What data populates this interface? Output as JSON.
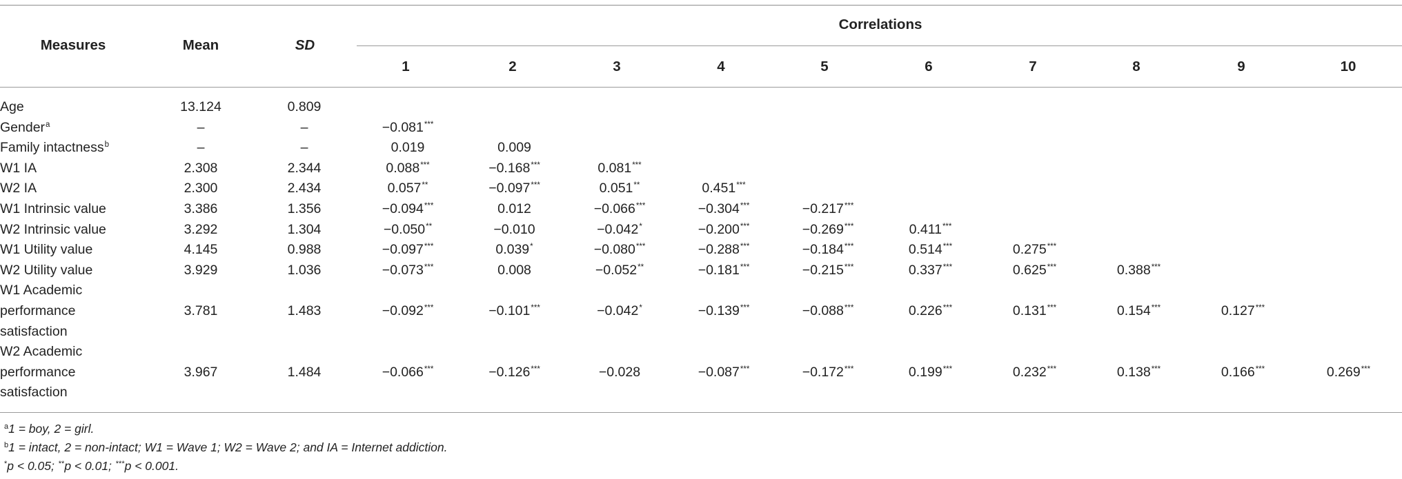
{
  "header": {
    "measures": "Measures",
    "mean": "Mean",
    "sd": "SD",
    "correlations": "Correlations",
    "cols": [
      "1",
      "2",
      "3",
      "4",
      "5",
      "6",
      "7",
      "8",
      "9",
      "10"
    ]
  },
  "rows": [
    {
      "label_lines": [
        "Age"
      ],
      "sup": "",
      "mean": "13.124",
      "sd": "0.809",
      "corr": []
    },
    {
      "label_lines": [
        "Gender"
      ],
      "sup": "a",
      "mean": "–",
      "sd": "–",
      "corr": [
        {
          "v": "−0.081",
          "s": "***"
        }
      ]
    },
    {
      "label_lines": [
        "Family intactness"
      ],
      "sup": "b",
      "mean": "–",
      "sd": "–",
      "corr": [
        {
          "v": "0.019",
          "s": ""
        },
        {
          "v": "0.009",
          "s": ""
        }
      ]
    },
    {
      "label_lines": [
        "W1 IA"
      ],
      "sup": "",
      "mean": "2.308",
      "sd": "2.344",
      "corr": [
        {
          "v": "0.088",
          "s": "***"
        },
        {
          "v": "−0.168",
          "s": "***"
        },
        {
          "v": "0.081",
          "s": "***"
        }
      ]
    },
    {
      "label_lines": [
        "W2 IA"
      ],
      "sup": "",
      "mean": "2.300",
      "sd": "2.434",
      "corr": [
        {
          "v": "0.057",
          "s": "**"
        },
        {
          "v": "−0.097",
          "s": "***"
        },
        {
          "v": "0.051",
          "s": "**"
        },
        {
          "v": "0.451",
          "s": "***"
        }
      ]
    },
    {
      "label_lines": [
        "W1 Intrinsic value"
      ],
      "sup": "",
      "mean": "3.386",
      "sd": "1.356",
      "corr": [
        {
          "v": "−0.094",
          "s": "***"
        },
        {
          "v": "0.012",
          "s": ""
        },
        {
          "v": "−0.066",
          "s": "***"
        },
        {
          "v": "−0.304",
          "s": "***"
        },
        {
          "v": "−0.217",
          "s": "***"
        }
      ]
    },
    {
      "label_lines": [
        "W2 Intrinsic value"
      ],
      "sup": "",
      "mean": "3.292",
      "sd": "1.304",
      "corr": [
        {
          "v": "−0.050",
          "s": "**"
        },
        {
          "v": "−0.010",
          "s": ""
        },
        {
          "v": "−0.042",
          "s": "*"
        },
        {
          "v": "−0.200",
          "s": "***"
        },
        {
          "v": "−0.269",
          "s": "***"
        },
        {
          "v": "0.411",
          "s": "***"
        }
      ]
    },
    {
      "label_lines": [
        "W1 Utility value"
      ],
      "sup": "",
      "mean": "4.145",
      "sd": "0.988",
      "corr": [
        {
          "v": "−0.097",
          "s": "***"
        },
        {
          "v": "0.039",
          "s": "*"
        },
        {
          "v": "−0.080",
          "s": "***"
        },
        {
          "v": "−0.288",
          "s": "***"
        },
        {
          "v": "−0.184",
          "s": "***"
        },
        {
          "v": "0.514",
          "s": "***"
        },
        {
          "v": "0.275",
          "s": "***"
        }
      ]
    },
    {
      "label_lines": [
        "W2 Utility value"
      ],
      "sup": "",
      "mean": "3.929",
      "sd": "1.036",
      "corr": [
        {
          "v": "−0.073",
          "s": "***"
        },
        {
          "v": "0.008",
          "s": ""
        },
        {
          "v": "−0.052",
          "s": "**"
        },
        {
          "v": "−0.181",
          "s": "***"
        },
        {
          "v": "−0.215",
          "s": "***"
        },
        {
          "v": "0.337",
          "s": "***"
        },
        {
          "v": "0.625",
          "s": "***"
        },
        {
          "v": "0.388",
          "s": "***"
        }
      ]
    },
    {
      "label_lines": [
        "W1 Academic",
        "performance",
        "satisfaction"
      ],
      "sup": "",
      "mean": "3.781",
      "sd": "1.483",
      "corr": [
        {
          "v": "−0.092",
          "s": "***"
        },
        {
          "v": "−0.101",
          "s": "***"
        },
        {
          "v": "−0.042",
          "s": "*"
        },
        {
          "v": "−0.139",
          "s": "***"
        },
        {
          "v": "−0.088",
          "s": "***"
        },
        {
          "v": "0.226",
          "s": "***"
        },
        {
          "v": "0.131",
          "s": "***"
        },
        {
          "v": "0.154",
          "s": "***"
        },
        {
          "v": "0.127",
          "s": "***"
        }
      ]
    },
    {
      "label_lines": [
        "W2 Academic",
        "performance",
        "satisfaction"
      ],
      "sup": "",
      "mean": "3.967",
      "sd": "1.484",
      "corr": [
        {
          "v": "−0.066",
          "s": "***"
        },
        {
          "v": "−0.126",
          "s": "***"
        },
        {
          "v": "−0.028",
          "s": ""
        },
        {
          "v": "−0.087",
          "s": "***"
        },
        {
          "v": "−0.172",
          "s": "***"
        },
        {
          "v": "0.199",
          "s": "***"
        },
        {
          "v": "0.232",
          "s": "***"
        },
        {
          "v": "0.138",
          "s": "***"
        },
        {
          "v": "0.166",
          "s": "***"
        },
        {
          "v": "0.269",
          "s": "***"
        }
      ]
    }
  ],
  "notes": [
    {
      "sup": "a",
      "text": "1 = boy, 2 = girl."
    },
    {
      "sup": "b",
      "text": "1 = intact, 2 = non-intact; W1 = Wave 1; W2 = Wave 2; and IA = Internet addiction."
    },
    {
      "sup": "",
      "text": "",
      "parts": [
        {
          "sup": "*",
          "text": "p < 0.05; "
        },
        {
          "sup": "**",
          "text": "p < 0.01; "
        },
        {
          "sup": "***",
          "text": "p < 0.001."
        }
      ]
    }
  ]
}
